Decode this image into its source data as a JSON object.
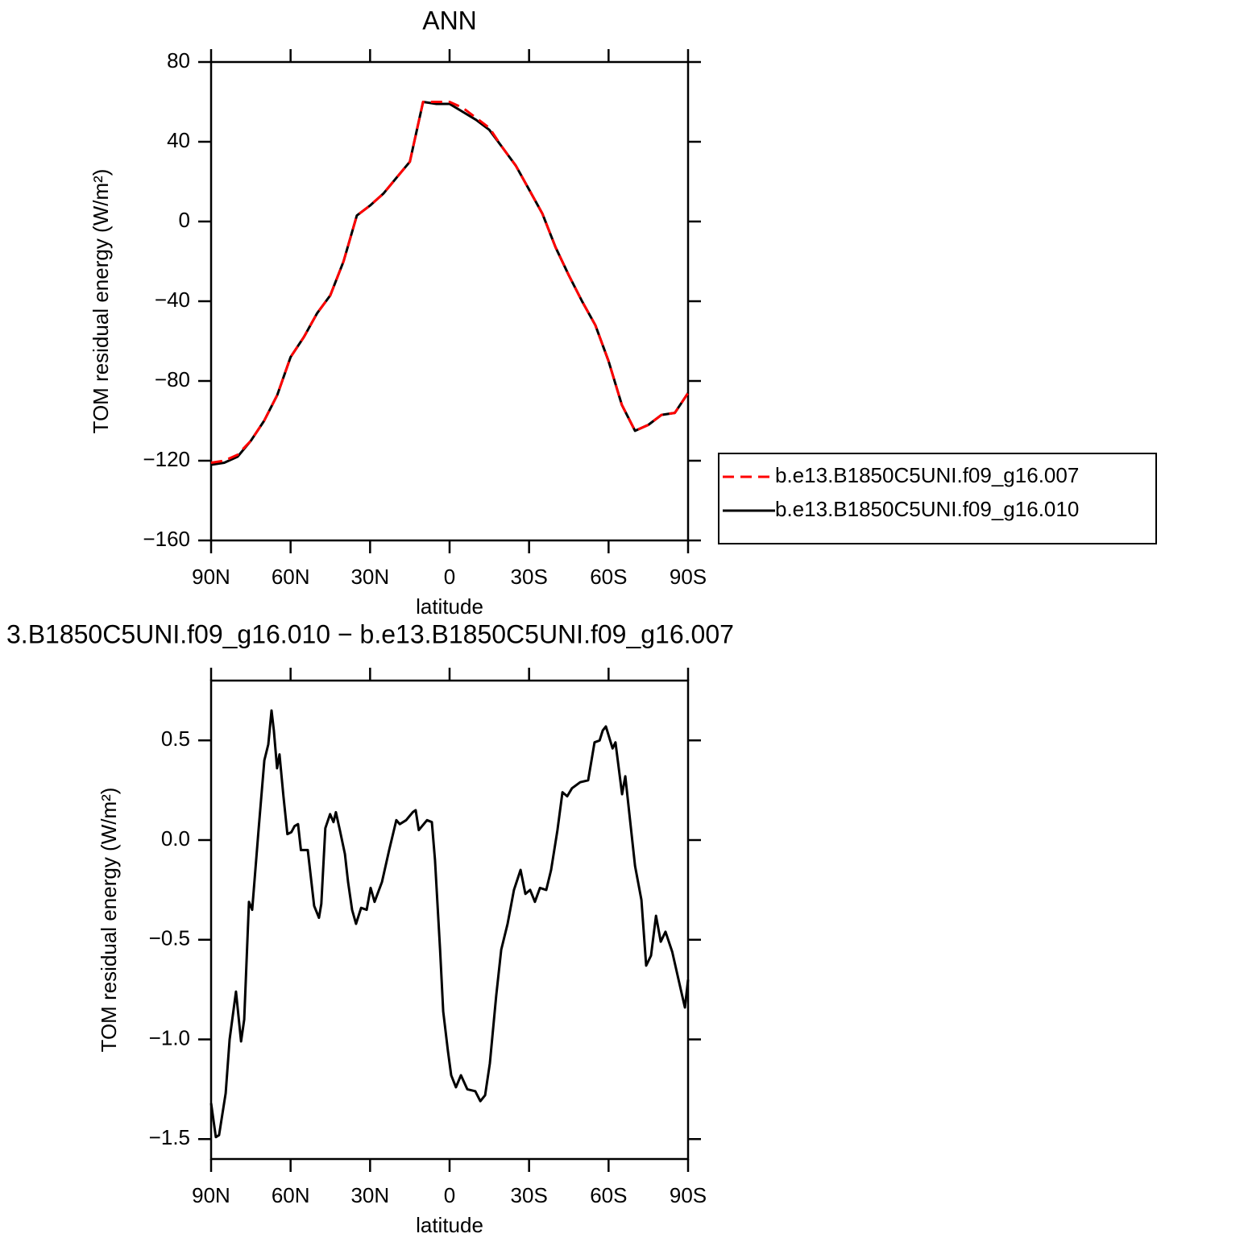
{
  "chart_data": [
    {
      "type": "line",
      "title": "ANN",
      "xlabel": "latitude",
      "ylabel": "TOM residual energy (W/m²)",
      "x": [
        90,
        85,
        80,
        75,
        70,
        65,
        60,
        55,
        50,
        45,
        40,
        35,
        30,
        25,
        20,
        15,
        10,
        5,
        0,
        -5,
        -10,
        -15,
        -20,
        -25,
        -30,
        -35,
        -40,
        -45,
        -50,
        -55,
        -60,
        -65,
        -70,
        -75,
        -80,
        -85,
        -90
      ],
      "xlim": [
        90,
        -90
      ],
      "xticks": [
        {
          "value": 90,
          "label": "90N"
        },
        {
          "value": 60,
          "label": "60N"
        },
        {
          "value": 30,
          "label": "30N"
        },
        0,
        {
          "value": -30,
          "label": "30S"
        },
        {
          "value": -60,
          "label": "60S"
        },
        {
          "value": -90,
          "label": "90S"
        }
      ],
      "ylim": [
        -160,
        80
      ],
      "yticks": [
        {
          "value": -160,
          "label": "−160"
        },
        {
          "value": -120,
          "label": "−120"
        },
        {
          "value": -80,
          "label": "−80"
        },
        {
          "value": -40,
          "label": "−40"
        },
        0,
        40,
        80
      ],
      "legend": "right",
      "series": [
        {
          "name": "b.e13.B1850C5UNI.f09_g16.007",
          "color": "#ff0000",
          "linestyle": "dashed",
          "values": [
            -121,
            -120,
            -117,
            -110,
            -100,
            -87,
            -68,
            -58,
            -46,
            -37,
            -20,
            3,
            8,
            14,
            22,
            30,
            60,
            60,
            60,
            57,
            52,
            47,
            37,
            28,
            16,
            4,
            -13,
            -27,
            -40,
            -52,
            -70,
            -92,
            -105,
            -102,
            -97,
            -96,
            -86
          ]
        },
        {
          "name": "b.e13.B1850C5UNI.f09_g16.010",
          "color": "#000000",
          "linestyle": "solid",
          "values": [
            -122,
            -121,
            -118,
            -110,
            -100,
            -87,
            -68,
            -58,
            -46,
            -37,
            -20,
            3,
            8,
            14,
            22,
            30,
            60,
            59,
            59,
            55,
            51,
            46,
            37,
            28,
            16,
            4,
            -13,
            -27,
            -40,
            -52,
            -70,
            -92,
            -105,
            -102,
            -97,
            -96,
            -86
          ]
        }
      ]
    },
    {
      "type": "line",
      "title": "3.B1850C5UNI.f09_g16.010 − b.e13.B1850C5UNI.f09_g16.007",
      "xlabel": "latitude",
      "ylabel": "TOM residual energy (W/m²)",
      "x": [
        90,
        88.2,
        87.0,
        84.5,
        83.0,
        80.6,
        78.7,
        77.5,
        75.7,
        74.5,
        72.1,
        69.9,
        68.4,
        67.2,
        66.3,
        65.1,
        64.2,
        62.7,
        61.2,
        59.7,
        58.5,
        57.2,
        56.1,
        53.5,
        51.1,
        49.3,
        48.4,
        46.9,
        45.1,
        43.8,
        42.9,
        41.4,
        39.5,
        38.3,
        36.8,
        35.3,
        33.4,
        31.3,
        29.8,
        28.3,
        25.5,
        22.8,
        20.1,
        18.8,
        16.4,
        13.9,
        12.8,
        11.6,
        8.5,
        6.7,
        5.5,
        3.6,
        2.4,
        0.6,
        -0.6,
        -2.4,
        -4.3,
        -6.7,
        -9.7,
        -11.6,
        -13.4,
        -15.2,
        -17.6,
        -19.5,
        -21.9,
        -24.3,
        -26.8,
        -28.6,
        -30.4,
        -32.2,
        -34.1,
        -36.5,
        -38.3,
        -40.7,
        -42.6,
        -44.4,
        -46.2,
        -49.3,
        -52.3,
        -54.7,
        -56.6,
        -57.8,
        -59.0,
        -61.5,
        -62.6,
        -65.1,
        -66.3,
        -68.1,
        -70.0,
        -72.4,
        -74.2,
        -76.0,
        -77.9,
        -79.7,
        -81.5,
        -84.0,
        -87.6,
        -88.8,
        -90
      ],
      "xlim": [
        90,
        -90
      ],
      "xticks": [
        {
          "value": 90,
          "label": "90N"
        },
        {
          "value": 60,
          "label": "60N"
        },
        {
          "value": 30,
          "label": "30N"
        },
        0,
        {
          "value": -30,
          "label": "30S"
        },
        {
          "value": -60,
          "label": "60S"
        },
        {
          "value": -90,
          "label": "90S"
        }
      ],
      "ylim": [
        -1.6,
        0.8
      ],
      "yticks": [
        {
          "value": -1.5,
          "label": "−1.5"
        },
        {
          "value": -1.0,
          "label": "−1.0"
        },
        {
          "value": -0.5,
          "label": "−0.5"
        },
        {
          "value": 0,
          "label": "0.0"
        },
        0.5
      ],
      "series": [
        {
          "color": "#000000",
          "linestyle": "solid",
          "values": [
            -1.32,
            -1.49,
            -1.48,
            -1.27,
            -1.0,
            -0.76,
            -1.01,
            -0.9,
            -0.31,
            -0.35,
            0.05,
            0.4,
            0.48,
            0.65,
            0.55,
            0.36,
            0.43,
            0.22,
            0.03,
            0.04,
            0.07,
            0.08,
            -0.05,
            -0.05,
            -0.33,
            -0.39,
            -0.32,
            0.06,
            0.13,
            0.09,
            0.14,
            0.05,
            -0.07,
            -0.21,
            -0.35,
            -0.42,
            -0.34,
            -0.35,
            -0.24,
            -0.31,
            -0.21,
            -0.05,
            0.1,
            0.08,
            0.1,
            0.14,
            0.15,
            0.05,
            0.1,
            0.09,
            -0.1,
            -0.55,
            -0.86,
            -1.06,
            -1.18,
            -1.24,
            -1.18,
            -1.25,
            -1.26,
            -1.31,
            -1.28,
            -1.12,
            -0.78,
            -0.55,
            -0.42,
            -0.25,
            -0.15,
            -0.27,
            -0.25,
            -0.31,
            -0.24,
            -0.25,
            -0.15,
            0.05,
            0.24,
            0.22,
            0.26,
            0.29,
            0.3,
            0.49,
            0.5,
            0.55,
            0.57,
            0.46,
            0.49,
            0.23,
            0.32,
            0.1,
            -0.13,
            -0.3,
            -0.63,
            -0.58,
            -0.38,
            -0.51,
            -0.46,
            -0.56,
            -0.77,
            -0.84,
            -0.7
          ]
        }
      ]
    }
  ]
}
